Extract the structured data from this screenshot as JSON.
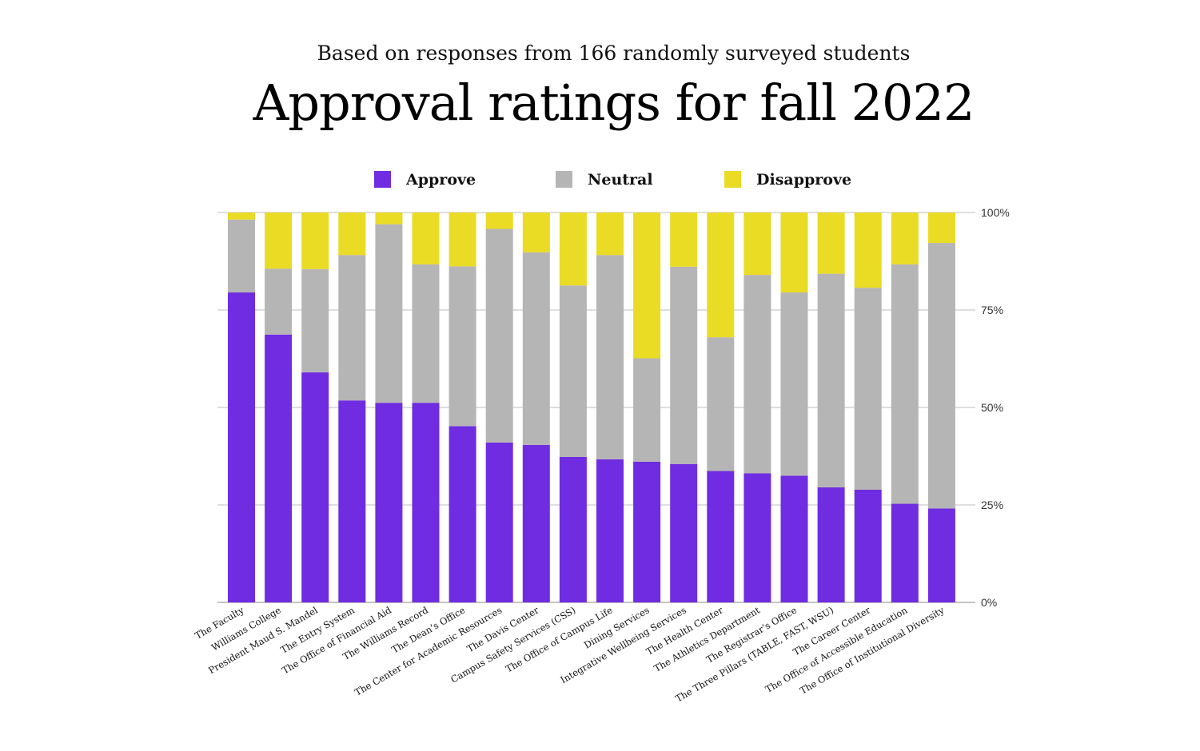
{
  "subtitle": "Based on responses from 166 randomly surveyed students",
  "title": "Approval ratings for fall 2022",
  "colors": {
    "approve": "#6f2ce0",
    "neutral": "#b5b5b5",
    "disapprove": "#eadb24",
    "grid": "#bdbdbd"
  },
  "chart_data": {
    "type": "bar",
    "stacked": true,
    "orientation": "vertical",
    "legend_position": "top",
    "grid": true,
    "y_axis_side": "right",
    "ylim": [
      0,
      100
    ],
    "y_ticks": [
      {
        "value": 100,
        "label": "100%"
      },
      {
        "value": 75,
        "label": "75%"
      },
      {
        "value": 50,
        "label": "50%"
      },
      {
        "value": 25,
        "label": "25%"
      },
      {
        "value": 0,
        "label": "0%"
      }
    ],
    "categories": [
      "The Faculty",
      "Williams College",
      "President Maud S. Mandel",
      "The Entry System",
      "The Office of Financial Aid",
      "The Williams Record",
      "The Dean’s Office",
      "The Center for Academic Resources",
      "The Davis Center",
      "Campus Safety Services (CSS)",
      "The Office of Campus Life",
      "Dining Services",
      "Integrative Wellbeing Services",
      "The Health Center",
      "The Athletics Department",
      "The Registrar’s Office",
      "The Three Pillars (TABLE, FAST, WSU)",
      "The Career Center",
      "The Office of Accessible Education",
      "The Office of Institutional Diversity"
    ],
    "series": [
      {
        "name": "Approve",
        "key": "approve",
        "values": [
          79.5,
          68.7,
          59.0,
          51.8,
          51.2,
          51.2,
          45.2,
          41.0,
          40.4,
          37.3,
          36.7,
          36.1,
          35.5,
          33.7,
          33.1,
          32.5,
          29.5,
          28.9,
          25.3,
          24.1
        ]
      },
      {
        "name": "Neutral",
        "key": "neutral",
        "values": [
          18.7,
          16.9,
          26.5,
          37.3,
          45.8,
          35.5,
          41.0,
          54.8,
          49.4,
          44.0,
          52.4,
          26.5,
          50.6,
          34.3,
          50.9,
          47.0,
          54.8,
          51.8,
          61.4,
          68.1
        ]
      },
      {
        "name": "Disapprove",
        "key": "disapprove",
        "values": [
          1.8,
          14.4,
          14.5,
          10.9,
          3.0,
          13.3,
          13.8,
          4.2,
          10.2,
          18.7,
          10.9,
          37.4,
          13.9,
          32.0,
          16.0,
          20.5,
          15.7,
          19.3,
          13.3,
          7.8
        ]
      }
    ]
  }
}
